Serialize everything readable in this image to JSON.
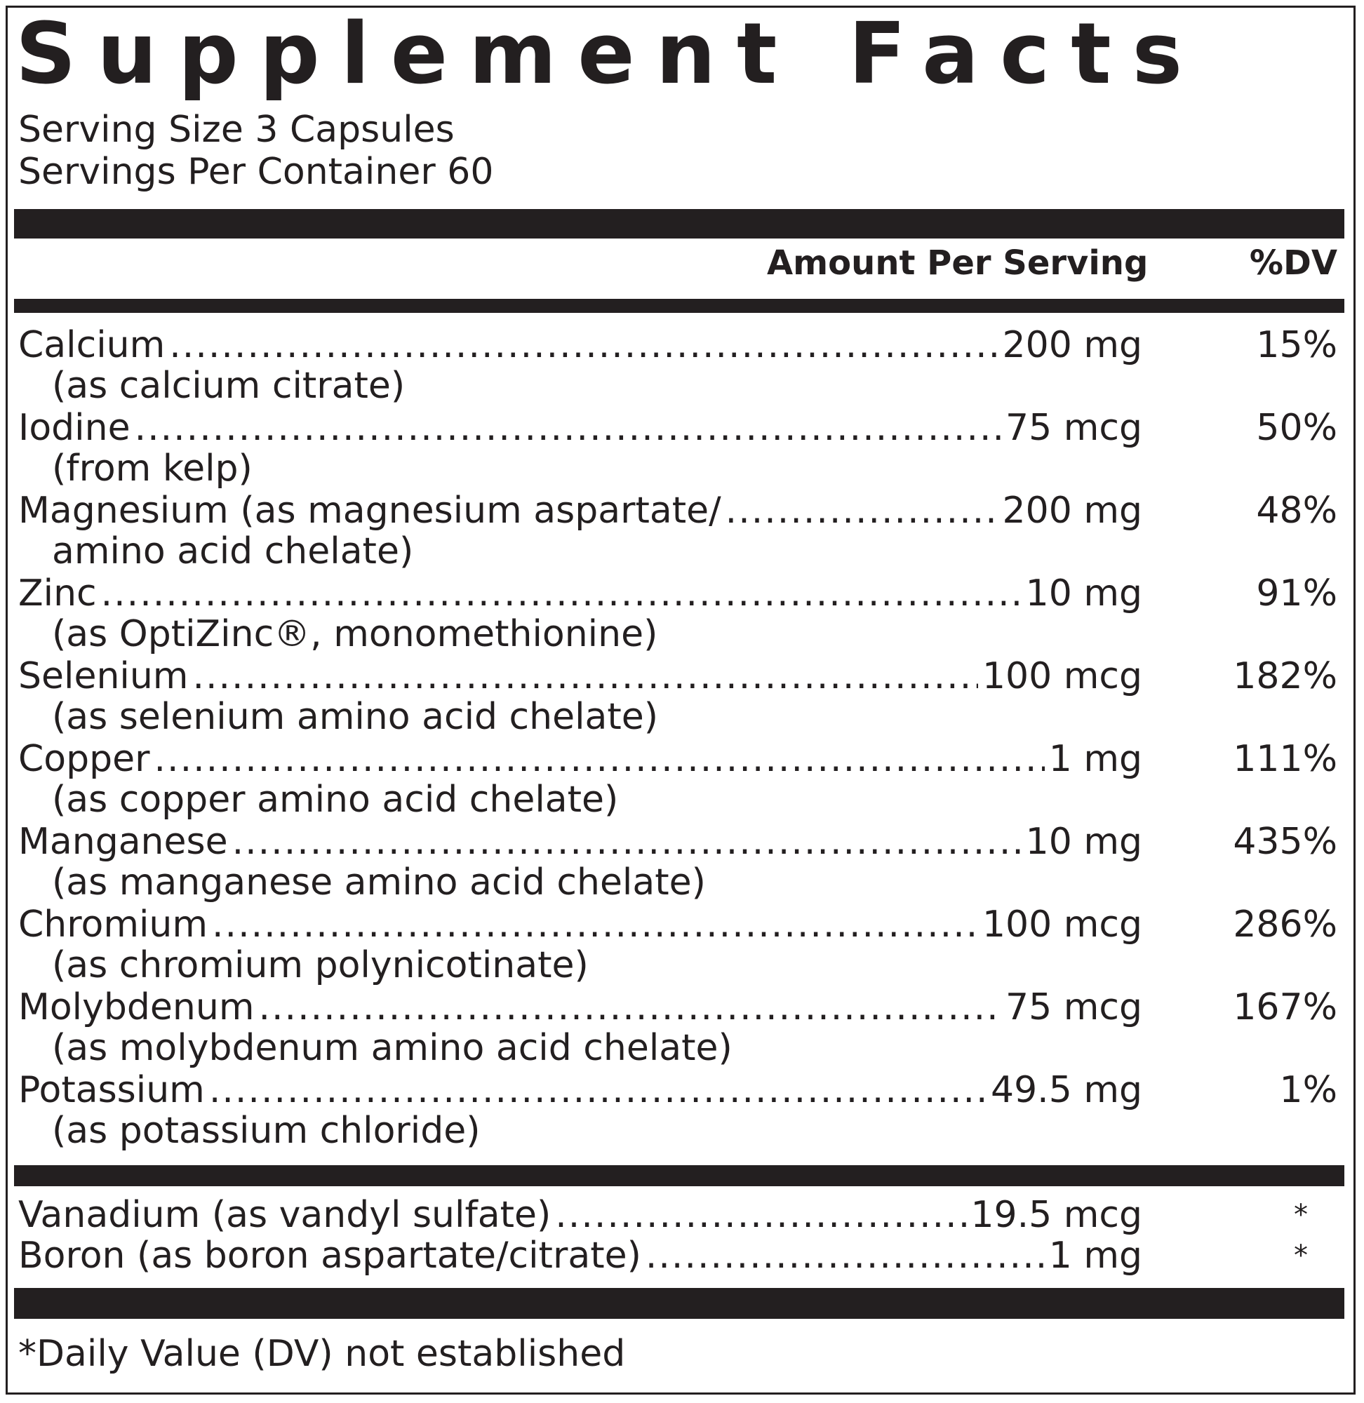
{
  "panel": {
    "title": "Supplement Facts",
    "serving_size": "Serving Size 3 Capsules",
    "servings_per_container": "Servings Per Container 60"
  },
  "header": {
    "amount_label": "Amount Per Serving",
    "dv_label": "%DV"
  },
  "nutrients": [
    {
      "name": "Calcium",
      "amount": "200 mg",
      "dv": "15%",
      "source": "(as calcium citrate)"
    },
    {
      "name": "Iodine",
      "amount": "75 mcg",
      "dv": "50%",
      "source": "(from kelp)"
    },
    {
      "name": "Magnesium (as magnesium aspartate/",
      "amount": "200 mg",
      "dv": "48%",
      "source": "amino acid chelate)"
    },
    {
      "name": "Zinc",
      "amount": "10 mg",
      "dv": "91%",
      "source": "(as OptiZinc®, monomethionine)"
    },
    {
      "name": "Selenium",
      "amount": "100 mcg",
      "dv": "182%",
      "source": "(as selenium amino acid chelate)"
    },
    {
      "name": "Copper",
      "amount": "1 mg",
      "dv": "111%",
      "source": "(as copper amino acid chelate)"
    },
    {
      "name": "Manganese",
      "amount": "10 mg",
      "dv": "435%",
      "source": "(as manganese amino acid chelate)"
    },
    {
      "name": "Chromium",
      "amount": "100 mcg",
      "dv": "286%",
      "source": "(as chromium polynicotinate)"
    },
    {
      "name": "Molybdenum",
      "amount": "75 mcg",
      "dv": "167%",
      "source": "(as molybdenum amino acid chelate)"
    },
    {
      "name": "Potassium",
      "amount": "49.5 mg",
      "dv": "1%",
      "source": "(as potassium chloride)"
    }
  ],
  "other_ingredients": [
    {
      "name": "Vanadium (as vandyl sulfate)",
      "amount": "19.5 mcg",
      "dv": "*"
    },
    {
      "name": "Boron (as boron aspartate/citrate)",
      "amount": "1 mg",
      "dv": "*"
    }
  ],
  "footnote": "*Daily Value (DV) not established"
}
